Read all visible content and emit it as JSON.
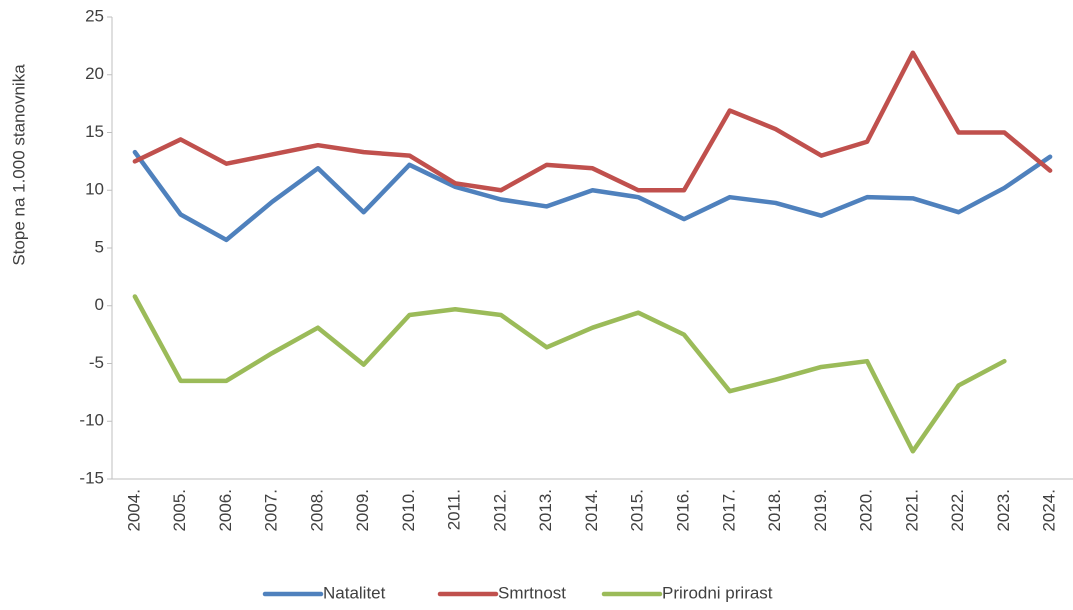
{
  "chart_data": {
    "type": "line",
    "y_label": "Stope na 1.000 stanovnika",
    "categories": [
      "2004.",
      "2005.",
      "2006.",
      "2007.",
      "2008.",
      "2009.",
      "2010.",
      "2011.",
      "2012.",
      "2013.",
      "2014.",
      "2015.",
      "2016.",
      "2017.",
      "2018.",
      "2019.",
      "2020.",
      "2021.",
      "2022.",
      "2023.",
      "2024."
    ],
    "series": [
      {
        "name": "Natalitet",
        "color": "#4f81bd",
        "values": [
          13.3,
          7.9,
          5.7,
          9.0,
          11.9,
          8.1,
          12.2,
          10.3,
          9.2,
          8.6,
          10.0,
          9.4,
          7.5,
          9.4,
          8.9,
          7.8,
          9.4,
          9.3,
          8.1,
          10.2,
          12.9
        ]
      },
      {
        "name": "Smrtnost",
        "color": "#c0504d",
        "values": [
          12.5,
          14.4,
          12.3,
          13.1,
          13.9,
          13.3,
          13.0,
          10.6,
          10.0,
          12.2,
          11.9,
          10.0,
          10.0,
          16.9,
          15.3,
          13.0,
          14.2,
          21.9,
          15.0,
          15.0,
          11.7
        ]
      },
      {
        "name": "Prirodni prirast",
        "color": "#9bbb59",
        "values": [
          0.8,
          -6.5,
          -6.5,
          -4.1,
          -1.9,
          -5.1,
          -0.8,
          -0.3,
          -0.8,
          -3.6,
          -1.9,
          -0.6,
          -2.5,
          -7.4,
          -6.4,
          -5.3,
          -4.8,
          -12.6,
          -6.9,
          -4.8,
          null
        ]
      }
    ],
    "ylim": [
      -15,
      25
    ],
    "yticks": [
      -15,
      -10,
      -5,
      0,
      5,
      10,
      15,
      20,
      25
    ],
    "legend": "bottom"
  }
}
